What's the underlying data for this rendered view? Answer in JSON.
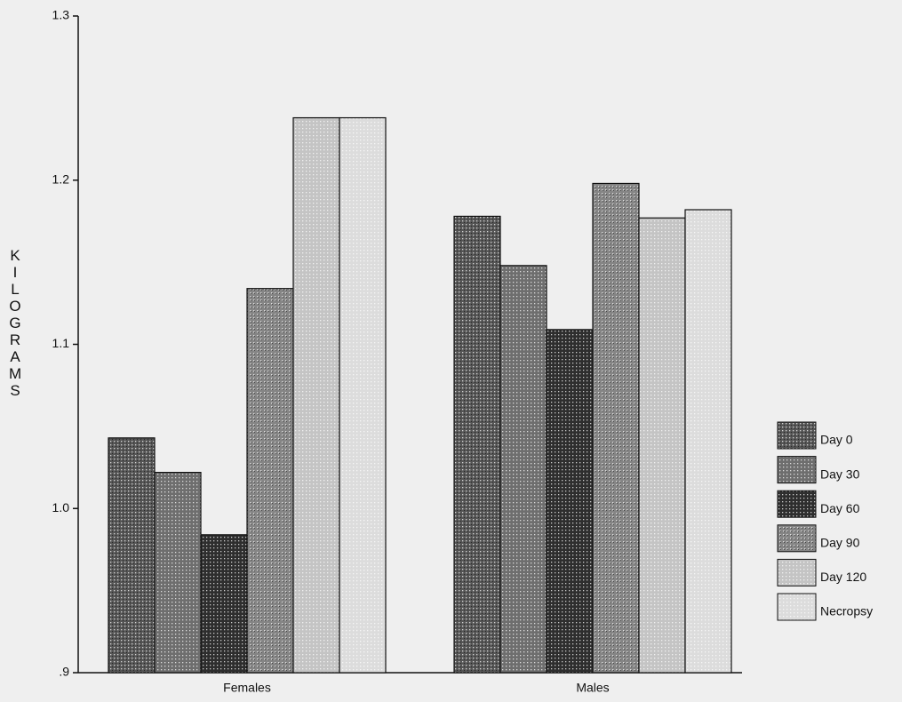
{
  "chart_data": {
    "type": "bar",
    "ylabel": "KILOGRAMS",
    "categories": [
      "Females",
      "Males"
    ],
    "series": [
      {
        "name": "Day 0",
        "color": "#555555",
        "values": [
          1.043,
          1.178
        ]
      },
      {
        "name": "Day 30",
        "color": "#6e6e6e",
        "values": [
          1.022,
          1.148
        ]
      },
      {
        "name": "Day 60",
        "color": "#2e2e2e",
        "values": [
          0.984,
          1.109
        ]
      },
      {
        "name": "Day 90",
        "color": "#858585",
        "values": [
          1.134,
          1.198
        ]
      },
      {
        "name": "Day 120",
        "color": "#c4c4c4",
        "values": [
          1.238,
          1.177
        ]
      },
      {
        "name": "Necropsy",
        "color": "#dcdcdc",
        "values": [
          1.238,
          1.182
        ]
      }
    ],
    "ylim": [
      0.9,
      1.3
    ],
    "yticks": [
      {
        "value": 0.9,
        "label": ".9"
      },
      {
        "value": 1,
        "label": "1.0"
      },
      1.1,
      1.2,
      1.3
    ],
    "legend": "right"
  }
}
